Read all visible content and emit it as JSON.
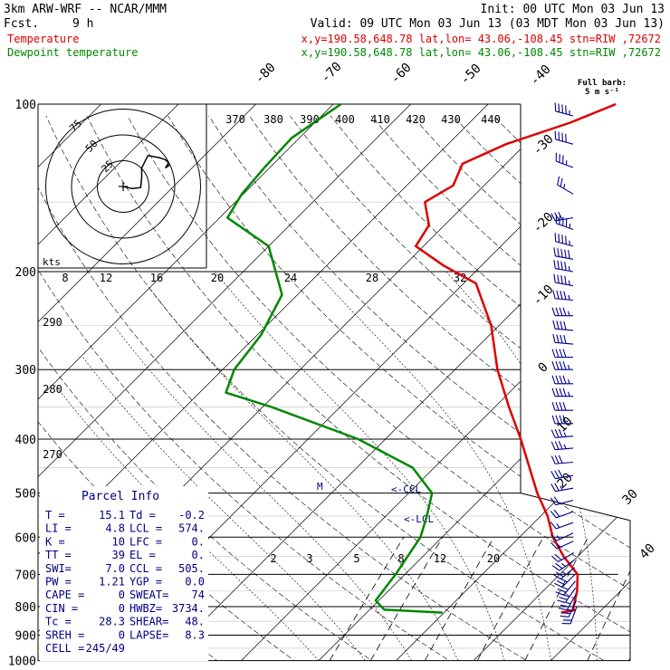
{
  "header": {
    "model": "3km ARW-WRF -- NCAR/MMM",
    "fcst_label": "Fcst.",
    "fcst_value": "9 h",
    "init": "Init: 00 UTC Mon 03 Jun 13",
    "valid": "Valid: 09 UTC Mon 03 Jun 13 (03 MDT Mon 03 Jun 13)"
  },
  "legend": [
    {
      "name": "Temperature",
      "info": "x,y=190.58,648.78    lat,lon= 43.06,-108.45   stn=RIW ,72672",
      "color": "#dd0000"
    },
    {
      "name": "Dewpoint temperature",
      "info": "x,y=190.58,648.78    lat,lon= 43.06,-108.45   stn=RIW ,72672",
      "color": "#008800"
    }
  ],
  "barb_title": [
    "Full barb:",
    "5 m s⁻¹"
  ],
  "hodograph": {
    "unit_label": "kts",
    "rings": [
      "25",
      "50",
      "75"
    ]
  },
  "parcel_info": {
    "title": "Parcel Info",
    "rows": [
      [
        "T  =",
        "15.1",
        "Td =",
        "-0.2"
      ],
      [
        "LI =",
        "4.8",
        "LCL =",
        "574."
      ],
      [
        "K  =",
        "10",
        "LFC =",
        "0."
      ],
      [
        "TT =",
        "39",
        "EL =",
        "0."
      ],
      [
        "SWI=",
        "7.0",
        "CCL =",
        "505."
      ],
      [
        "PW =",
        "1.21",
        "YGP =",
        "0.0"
      ],
      [
        "CAPE =",
        "0",
        "SWEAT=",
        "74"
      ],
      [
        "CIN =",
        "0",
        "HWBZ=",
        "3734."
      ],
      [
        "Tc =",
        "28.3",
        "SHEAR=",
        "48."
      ],
      [
        "SREH =",
        "0",
        "LAPSE=",
        "8.3"
      ],
      [
        "CELL =",
        "245/49",
        "",
        ""
      ]
    ]
  },
  "annotations": {
    "ccl": "<-CCL",
    "lcl": "<-LCL",
    "m": "M"
  },
  "chart_data": {
    "type": "line",
    "title": "",
    "ylabel": "",
    "xlabel": "",
    "y_scale": "log-pressure",
    "ylim": [
      1000,
      100
    ],
    "pressure_ticks": [
      "100",
      "200",
      "300",
      "400",
      "500",
      "600",
      "700",
      "800",
      "900",
      "1000"
    ],
    "isotherm_labels": [
      "-80",
      "-70",
      "-60",
      "-50",
      "-40",
      "-30",
      "-20",
      "-10",
      "0",
      "10",
      "20",
      "30",
      "40"
    ],
    "theta_labels": [
      "370",
      "380",
      "390",
      "400",
      "410",
      "420",
      "430",
      "440"
    ],
    "theta_labels_low": [
      "290",
      "280",
      "270"
    ],
    "mixing_ratio_labels": [
      "8",
      "12",
      "16",
      "20",
      "24",
      "28",
      "32"
    ],
    "mixing_ratio_labels_low": [
      "2",
      "3",
      "5",
      "8",
      "12",
      "20"
    ],
    "series": [
      {
        "name": "Temperature",
        "color": "#dd0000",
        "points": [
          [
            820,
            15.1
          ],
          [
            812,
            16.5
          ],
          [
            805,
            16.1
          ],
          [
            750,
            14.4
          ],
          [
            700,
            12.3
          ],
          [
            650,
            8.2
          ],
          [
            600,
            4.3
          ],
          [
            550,
            0.9
          ],
          [
            500,
            -3.4
          ],
          [
            450,
            -7.7
          ],
          [
            400,
            -12.5
          ],
          [
            350,
            -18.2
          ],
          [
            300,
            -24.5
          ],
          [
            250,
            -31.0
          ],
          [
            210,
            -38.4
          ],
          [
            195,
            -44.9
          ],
          [
            180,
            -51.0
          ],
          [
            165,
            -52.0
          ],
          [
            150,
            -55.5
          ],
          [
            140,
            -54.0
          ],
          [
            128,
            -55.6
          ],
          [
            118,
            -52.5
          ],
          [
            108,
            -47.0
          ],
          [
            100,
            -43.5
          ]
        ]
      },
      {
        "name": "Dewpoint temperature",
        "color": "#008800",
        "points": [
          [
            820,
            -0.2
          ],
          [
            810,
            -8.1
          ],
          [
            780,
            -10.4
          ],
          [
            700,
            -11.2
          ],
          [
            600,
            -12.8
          ],
          [
            550,
            -14.7
          ],
          [
            500,
            -17.0
          ],
          [
            450,
            -22.8
          ],
          [
            400,
            -33.5
          ],
          [
            350,
            -48.9
          ],
          [
            330,
            -56.6
          ],
          [
            300,
            -58.5
          ],
          [
            260,
            -59.5
          ],
          [
            220,
            -62.0
          ],
          [
            180,
            -70.0
          ],
          [
            160,
            -79.0
          ],
          [
            145,
            -80.2
          ],
          [
            130,
            -80.7
          ],
          [
            115,
            -81.0
          ],
          [
            100,
            -79.0
          ]
        ]
      }
    ],
    "wind_barbs": [
      {
        "p": 105,
        "dir": 285,
        "spd": 22
      },
      {
        "p": 118,
        "dir": 285,
        "spd": 20
      },
      {
        "p": 130,
        "dir": 290,
        "spd": 18
      },
      {
        "p": 145,
        "dir": 300,
        "spd": 12
      },
      {
        "p": 160,
        "dir": 260,
        "spd": 15
      },
      {
        "p": 168,
        "dir": 290,
        "spd": 22
      },
      {
        "p": 180,
        "dir": 285,
        "spd": 22
      },
      {
        "p": 190,
        "dir": 280,
        "spd": 25
      },
      {
        "p": 200,
        "dir": 280,
        "spd": 24
      },
      {
        "p": 212,
        "dir": 280,
        "spd": 22
      },
      {
        "p": 225,
        "dir": 275,
        "spd": 22
      },
      {
        "p": 240,
        "dir": 270,
        "spd": 22
      },
      {
        "p": 255,
        "dir": 275,
        "spd": 20
      },
      {
        "p": 270,
        "dir": 275,
        "spd": 20
      },
      {
        "p": 285,
        "dir": 270,
        "spd": 20
      },
      {
        "p": 300,
        "dir": 270,
        "spd": 22
      },
      {
        "p": 318,
        "dir": 270,
        "spd": 22
      },
      {
        "p": 335,
        "dir": 270,
        "spd": 22
      },
      {
        "p": 355,
        "dir": 270,
        "spd": 20
      },
      {
        "p": 375,
        "dir": 270,
        "spd": 20
      },
      {
        "p": 395,
        "dir": 265,
        "spd": 18
      },
      {
        "p": 415,
        "dir": 265,
        "spd": 18
      },
      {
        "p": 440,
        "dir": 265,
        "spd": 15
      },
      {
        "p": 465,
        "dir": 260,
        "spd": 15
      },
      {
        "p": 490,
        "dir": 260,
        "spd": 12
      },
      {
        "p": 515,
        "dir": 255,
        "spd": 10
      },
      {
        "p": 540,
        "dir": 250,
        "spd": 10
      },
      {
        "p": 565,
        "dir": 250,
        "spd": 8
      },
      {
        "p": 590,
        "dir": 245,
        "spd": 8
      },
      {
        "p": 610,
        "dir": 245,
        "spd": 8
      },
      {
        "p": 640,
        "dir": 240,
        "spd": 10
      },
      {
        "p": 660,
        "dir": 235,
        "spd": 12
      },
      {
        "p": 680,
        "dir": 230,
        "spd": 14
      },
      {
        "p": 700,
        "dir": 225,
        "spd": 15
      },
      {
        "p": 720,
        "dir": 220,
        "spd": 15
      },
      {
        "p": 740,
        "dir": 215,
        "spd": 15
      },
      {
        "p": 760,
        "dir": 210,
        "spd": 14
      },
      {
        "p": 780,
        "dir": 205,
        "spd": 12
      },
      {
        "p": 800,
        "dir": 200,
        "spd": 10
      }
    ],
    "hodograph_points": [
      [
        0,
        0
      ],
      [
        9,
        -2
      ],
      [
        17,
        -1
      ],
      [
        18,
        9
      ],
      [
        18,
        18
      ],
      [
        24,
        30
      ],
      [
        35,
        28
      ],
      [
        41,
        26
      ],
      [
        44,
        23
      ],
      [
        41,
        18
      ],
      [
        45,
        21
      ]
    ]
  }
}
